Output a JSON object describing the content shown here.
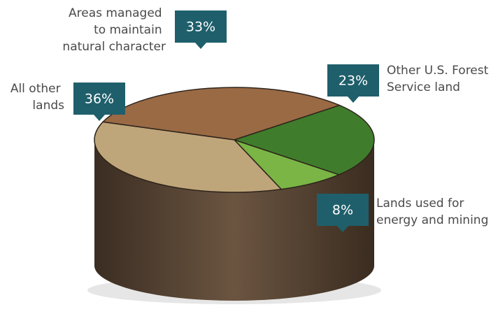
{
  "chart_data": {
    "type": "pie",
    "categories": [
      "Areas managed to maintain natural character",
      "Other U.S. Forest Service land",
      "Lands used for energy and mining",
      "All other lands"
    ],
    "values": [
      33,
      23,
      8,
      36
    ],
    "value_labels": [
      "33%",
      "23%",
      "8%",
      "36%"
    ],
    "colors": [
      "#9a6a45",
      "#3f7d2c",
      "#7ab545",
      "#bfa57a"
    ]
  }
}
